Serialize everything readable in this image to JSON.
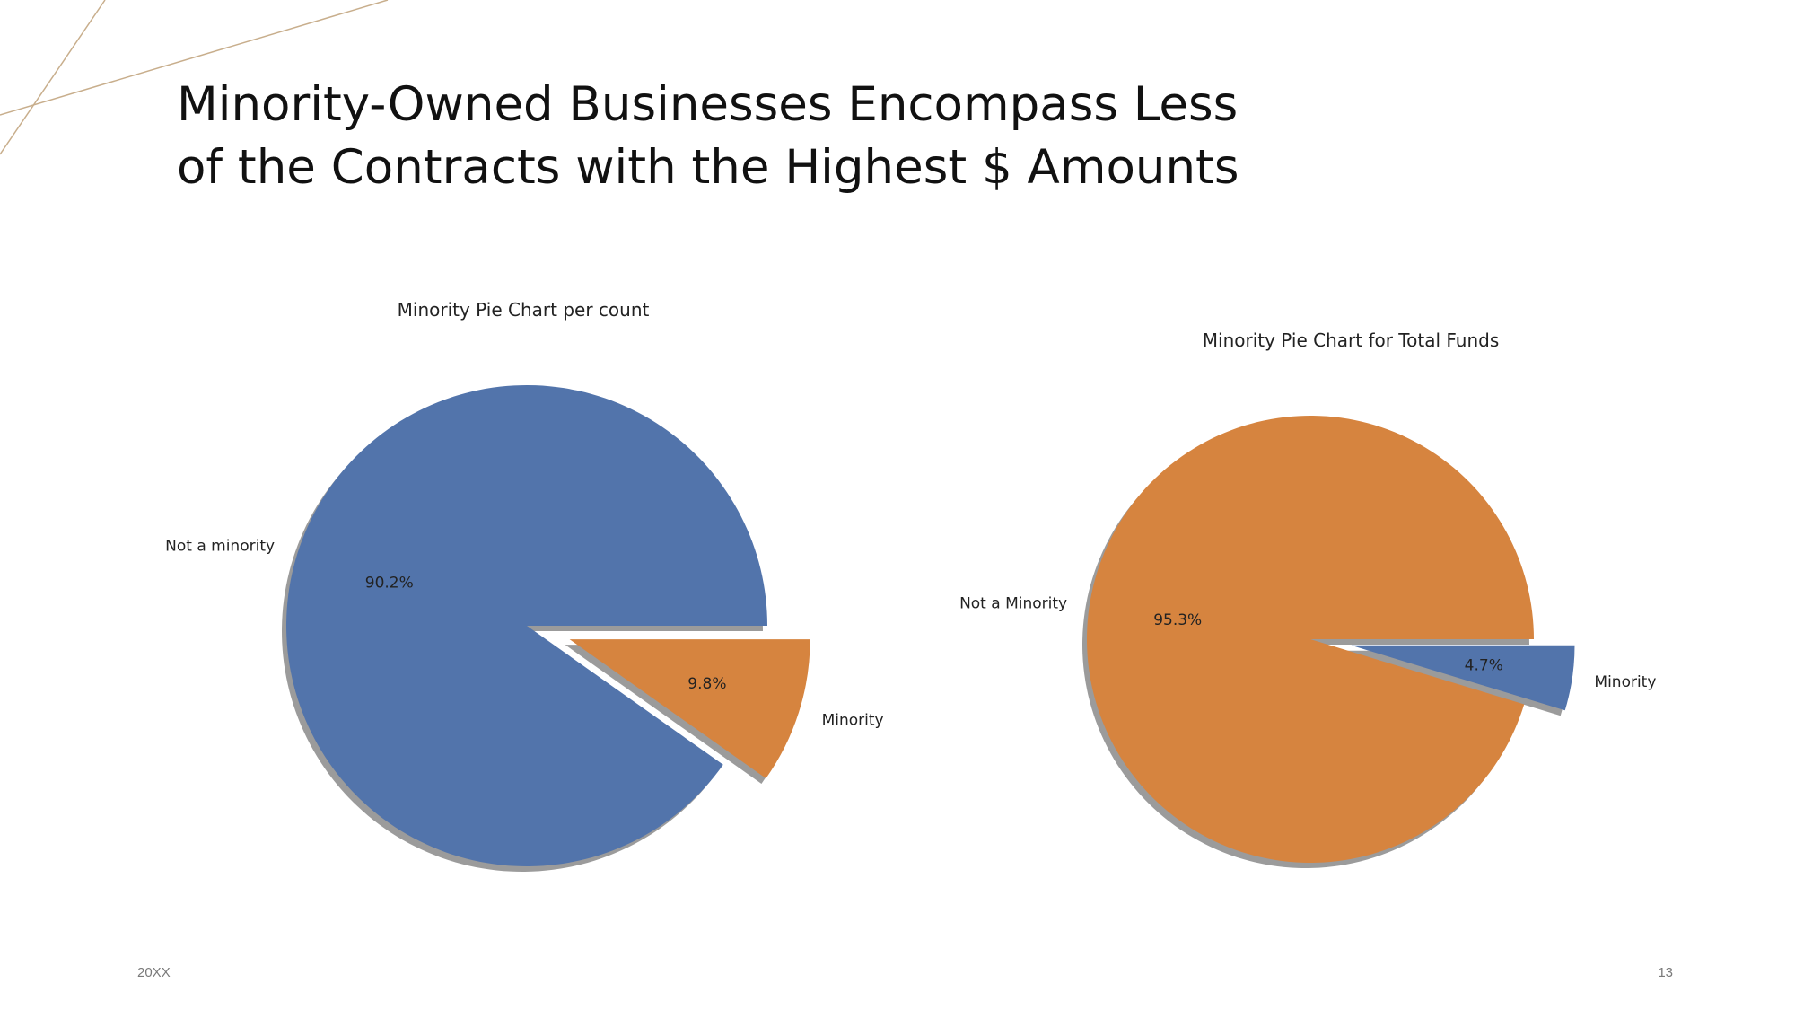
{
  "slide": {
    "title_lines": [
      "Minority-Owned Businesses Encompass Less",
      "of the Contracts with the Highest $ Amounts"
    ],
    "footer_left": "20XX",
    "footer_right": "13"
  },
  "colors": {
    "blue": "#5274ab",
    "orange": "#d6843f",
    "shadow": "#8a8a8a",
    "decor_line": "#c8ae8c"
  },
  "chart_data": [
    {
      "type": "pie",
      "title": "Minority Pie Chart per count",
      "slices": [
        {
          "label": "Not a minority",
          "pct_label": "90.2%",
          "value": 90.2,
          "color": "#5274ab",
          "exploded": false
        },
        {
          "label": "Minority",
          "pct_label": "9.8%",
          "value": 9.8,
          "color": "#d6843f",
          "exploded": true
        }
      ],
      "shadow": true
    },
    {
      "type": "pie",
      "title": "Minority Pie Chart for Total Funds",
      "slices": [
        {
          "label": "Not a Minority",
          "pct_label": "95.3%",
          "value": 95.3,
          "color": "#d6843f",
          "exploded": false
        },
        {
          "label": "Minority",
          "pct_label": "4.7%",
          "value": 4.7,
          "color": "#5274ab",
          "exploded": true
        }
      ],
      "shadow": true
    }
  ]
}
